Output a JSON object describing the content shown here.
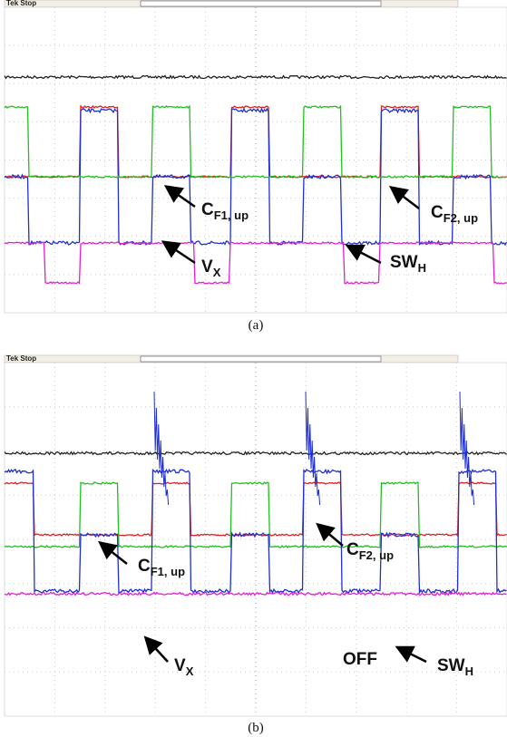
{
  "panels": [
    {
      "header": "Tek Stop",
      "caption": "(a)",
      "labels": [
        {
          "main": "C",
          "sub": "F1, up"
        },
        {
          "main": "C",
          "sub": "F2, up"
        },
        {
          "main": "V",
          "sub": "X"
        },
        {
          "main": "SW",
          "sub": "H"
        }
      ]
    },
    {
      "header": "Tek Stop",
      "caption": "(b)",
      "off": "OFF",
      "labels": [
        {
          "main": "C",
          "sub": "F1, up"
        },
        {
          "main": "C",
          "sub": "F2, up"
        },
        {
          "main": "V",
          "sub": "X"
        },
        {
          "main": "SW",
          "sub": "H"
        }
      ]
    }
  ]
}
